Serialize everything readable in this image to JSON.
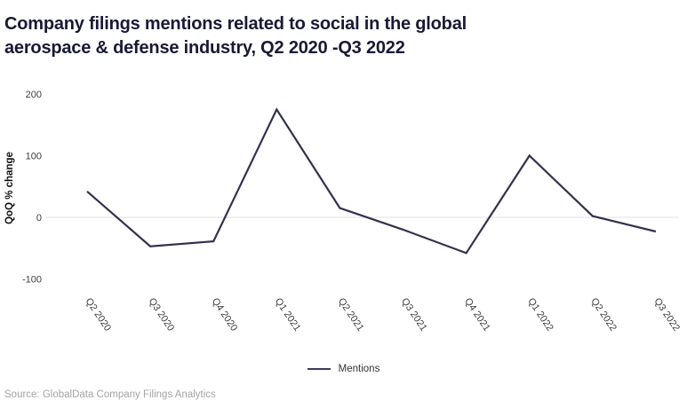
{
  "title_line1": "Company filings mentions related to social in the global",
  "title_line2": "aerospace & defense industry, Q2 2020 -Q3 2022",
  "source": "Source: GlobalData Company Filings Analytics",
  "legend": {
    "label": "Mentions"
  },
  "colors": {
    "line": "#31314f",
    "title": "#191936",
    "zero_gridline": "#e0e0e0",
    "tick_text": "#3d3d3d",
    "source_text": "#a3a3a3"
  },
  "chart_data": {
    "type": "line",
    "title": "Company filings mentions related to social in the global aerospace & defense industry, Q2 2020 -Q3 2022",
    "categories": [
      "Q2 2020",
      "Q3 2020",
      "Q4 2020",
      "Q1 2021",
      "Q2 2021",
      "Q3 2021",
      "Q4 2021",
      "Q1 2022",
      "Q2 2022",
      "Q3 2022"
    ],
    "series": [
      {
        "name": "Mentions",
        "values": [
          42,
          -47,
          -39,
          175,
          15,
          -20,
          -58,
          100,
          2,
          -23
        ]
      }
    ],
    "xlabel": "",
    "ylabel": "QoQ % change",
    "yticks": [
      200,
      100,
      0,
      -100
    ],
    "ylim": [
      -100,
      200
    ],
    "grid": "zero-line-only",
    "legend_position": "bottom-center",
    "x_tick_rotation_deg": 56
  }
}
